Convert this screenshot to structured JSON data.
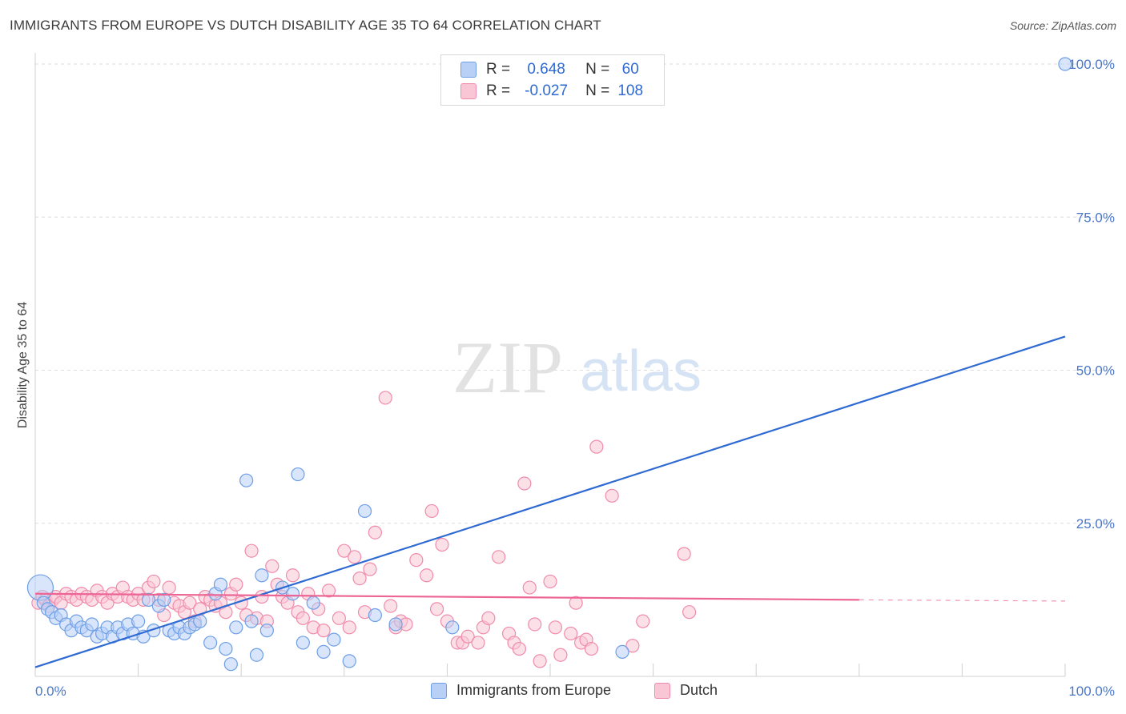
{
  "title": "IMMIGRANTS FROM EUROPE VS DUTCH DISABILITY AGE 35 TO 64 CORRELATION CHART",
  "source": "Source: ZipAtlas.com",
  "watermark": {
    "zip": "ZIP",
    "atlas": "atlas"
  },
  "legend": {
    "rows": [
      {
        "r_label": "R =",
        "r_value": "0.648",
        "n_label": "N =",
        "n_value": "60",
        "color": "#6e9fe6",
        "fill": "#b8d0f5"
      },
      {
        "r_label": "R =",
        "r_value": "-0.027",
        "n_label": "N =",
        "n_value": "108",
        "color": "#f08bab",
        "fill": "#f9c6d5"
      }
    ]
  },
  "bottom_legend": [
    "Immigrants from Europe",
    "Dutch"
  ],
  "chart_data": {
    "type": "scatter",
    "xlabel": "",
    "ylabel": "Disability Age 35 to 64",
    "xlim": [
      0,
      100
    ],
    "ylim": [
      0,
      100
    ],
    "x_tick_labels": [
      "0.0%",
      "100.0%"
    ],
    "y_tick_labels": [
      "25.0%",
      "50.0%",
      "75.0%",
      "100.0%"
    ],
    "y_ticks": [
      25,
      50,
      75,
      100
    ],
    "grid": true,
    "legend_position": "top-center",
    "series": [
      {
        "name": "Immigrants from Europe",
        "color": "#6e9fe6",
        "fill": "#b8d0f5",
        "line_color": "#2f6ad3",
        "trend": {
          "x": [
            0,
            100
          ],
          "y": [
            1.5,
            55.5
          ]
        },
        "points": [
          [
            0.5,
            14.5
          ],
          [
            0.8,
            12.0
          ],
          [
            1.2,
            11.0
          ],
          [
            1.6,
            10.5
          ],
          [
            2.0,
            9.5
          ],
          [
            2.5,
            10.0
          ],
          [
            3.0,
            8.5
          ],
          [
            3.5,
            7.5
          ],
          [
            4.0,
            9.0
          ],
          [
            4.5,
            8.0
          ],
          [
            5.0,
            7.5
          ],
          [
            5.5,
            8.5
          ],
          [
            6.0,
            6.5
          ],
          [
            6.5,
            7.0
          ],
          [
            7.0,
            8.0
          ],
          [
            7.5,
            6.5
          ],
          [
            8.0,
            8.0
          ],
          [
            8.5,
            7.0
          ],
          [
            9.0,
            8.5
          ],
          [
            9.5,
            7.0
          ],
          [
            10.0,
            9.0
          ],
          [
            10.5,
            6.5
          ],
          [
            11.0,
            12.5
          ],
          [
            11.5,
            7.5
          ],
          [
            12.0,
            11.5
          ],
          [
            12.5,
            12.5
          ],
          [
            13.0,
            7.5
          ],
          [
            13.5,
            7.0
          ],
          [
            14.0,
            8.0
          ],
          [
            14.5,
            7.0
          ],
          [
            15.0,
            8.0
          ],
          [
            15.5,
            8.5
          ],
          [
            16.0,
            9.0
          ],
          [
            17.0,
            5.5
          ],
          [
            17.5,
            13.5
          ],
          [
            18.0,
            15.0
          ],
          [
            18.5,
            4.5
          ],
          [
            19.0,
            2.0
          ],
          [
            19.5,
            8.0
          ],
          [
            20.5,
            32.0
          ],
          [
            21.0,
            9.0
          ],
          [
            21.5,
            3.5
          ],
          [
            22.0,
            16.5
          ],
          [
            22.5,
            7.5
          ],
          [
            24.0,
            14.5
          ],
          [
            25.5,
            33.0
          ],
          [
            25.0,
            13.5
          ],
          [
            26.0,
            5.5
          ],
          [
            27.0,
            12.0
          ],
          [
            28.0,
            4.0
          ],
          [
            29.0,
            6.0
          ],
          [
            30.5,
            2.5
          ],
          [
            32.0,
            27.0
          ],
          [
            33.0,
            10.0
          ],
          [
            35.0,
            8.5
          ],
          [
            40.5,
            8.0
          ],
          [
            57.0,
            4.0
          ],
          [
            100.0,
            100.0
          ]
        ]
      },
      {
        "name": "Dutch",
        "color": "#f08bab",
        "fill": "#f9c6d5",
        "line_color": "#ec6595",
        "trend": {
          "x": [
            0,
            80
          ],
          "y": [
            13.5,
            12.5
          ]
        },
        "trend_dashed": {
          "x": [
            80,
            100
          ],
          "y": [
            12.5,
            12.3
          ]
        },
        "points": [
          [
            0.3,
            12.0
          ],
          [
            0.7,
            13.0
          ],
          [
            1.0,
            12.5
          ],
          [
            1.3,
            11.5
          ],
          [
            1.7,
            12.5
          ],
          [
            2.0,
            13.0
          ],
          [
            2.5,
            12.0
          ],
          [
            3.0,
            13.5
          ],
          [
            3.5,
            13.0
          ],
          [
            4.0,
            12.5
          ],
          [
            4.5,
            13.5
          ],
          [
            5.0,
            13.0
          ],
          [
            5.5,
            12.5
          ],
          [
            6.0,
            14.0
          ],
          [
            6.5,
            13.0
          ],
          [
            7.0,
            12.0
          ],
          [
            7.5,
            13.5
          ],
          [
            8.0,
            13.0
          ],
          [
            8.5,
            14.5
          ],
          [
            9.0,
            13.0
          ],
          [
            9.5,
            12.5
          ],
          [
            10.0,
            13.5
          ],
          [
            10.5,
            12.5
          ],
          [
            11.0,
            14.5
          ],
          [
            11.5,
            15.5
          ],
          [
            12.0,
            12.5
          ],
          [
            12.5,
            10.0
          ],
          [
            13.0,
            14.5
          ],
          [
            13.5,
            12.0
          ],
          [
            14.0,
            11.5
          ],
          [
            14.5,
            10.5
          ],
          [
            15.0,
            12.0
          ],
          [
            15.5,
            9.0
          ],
          [
            16.0,
            11.0
          ],
          [
            16.5,
            13.0
          ],
          [
            17.0,
            12.5
          ],
          [
            17.5,
            11.5
          ],
          [
            18.0,
            12.0
          ],
          [
            18.5,
            10.5
          ],
          [
            19.0,
            13.5
          ],
          [
            19.5,
            15.0
          ],
          [
            20.0,
            12.0
          ],
          [
            20.5,
            10.0
          ],
          [
            21.0,
            20.5
          ],
          [
            21.5,
            9.5
          ],
          [
            22.0,
            13.0
          ],
          [
            22.5,
            9.0
          ],
          [
            23.0,
            18.0
          ],
          [
            23.5,
            15.0
          ],
          [
            24.0,
            13.0
          ],
          [
            24.5,
            12.0
          ],
          [
            25.0,
            16.5
          ],
          [
            25.5,
            10.5
          ],
          [
            26.0,
            9.5
          ],
          [
            26.5,
            13.5
          ],
          [
            27.0,
            8.0
          ],
          [
            27.5,
            11.0
          ],
          [
            28.0,
            7.5
          ],
          [
            28.5,
            14.0
          ],
          [
            29.5,
            9.5
          ],
          [
            30.0,
            20.5
          ],
          [
            30.5,
            8.0
          ],
          [
            31.0,
            19.5
          ],
          [
            31.5,
            16.0
          ],
          [
            32.0,
            10.5
          ],
          [
            32.5,
            17.5
          ],
          [
            33.0,
            23.5
          ],
          [
            34.0,
            45.5
          ],
          [
            34.5,
            11.5
          ],
          [
            35.0,
            8.0
          ],
          [
            35.5,
            9.0
          ],
          [
            36.0,
            8.5
          ],
          [
            37.0,
            19.0
          ],
          [
            38.0,
            16.5
          ],
          [
            38.5,
            27.0
          ],
          [
            39.0,
            11.0
          ],
          [
            39.5,
            21.5
          ],
          [
            40.0,
            9.0
          ],
          [
            41.0,
            5.5
          ],
          [
            41.5,
            5.5
          ],
          [
            42.0,
            6.5
          ],
          [
            43.0,
            5.5
          ],
          [
            43.5,
            8.0
          ],
          [
            44.0,
            9.5
          ],
          [
            45.0,
            19.5
          ],
          [
            46.0,
            7.0
          ],
          [
            46.5,
            5.5
          ],
          [
            47.0,
            4.5
          ],
          [
            47.5,
            31.5
          ],
          [
            48.0,
            14.5
          ],
          [
            48.5,
            8.5
          ],
          [
            49.0,
            2.5
          ],
          [
            50.0,
            15.5
          ],
          [
            50.5,
            8.0
          ],
          [
            51.0,
            3.5
          ],
          [
            52.0,
            7.0
          ],
          [
            52.5,
            12.0
          ],
          [
            53.0,
            5.5
          ],
          [
            53.5,
            6.0
          ],
          [
            54.0,
            4.5
          ],
          [
            54.5,
            37.5
          ],
          [
            56.0,
            29.5
          ],
          [
            58.0,
            5.0
          ],
          [
            59.0,
            9.0
          ],
          [
            63.0,
            20.0
          ],
          [
            63.5,
            10.5
          ]
        ]
      }
    ]
  }
}
